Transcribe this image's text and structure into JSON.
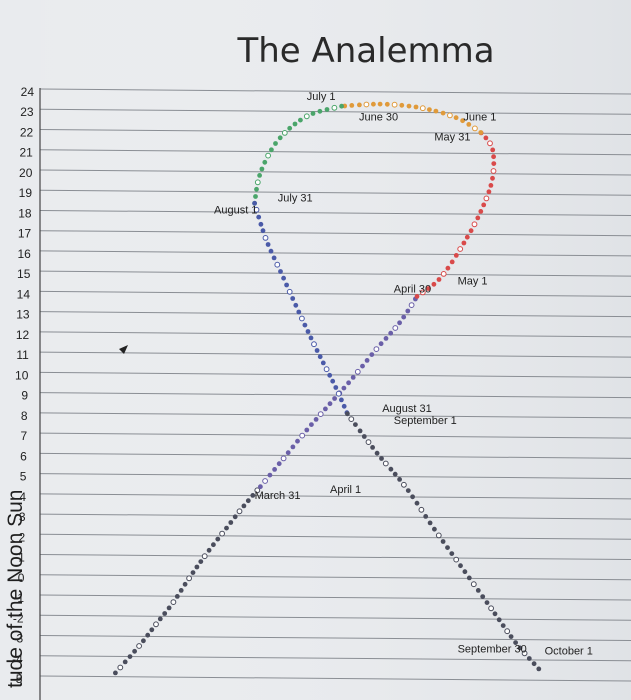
{
  "chart_data": {
    "type": "scatter",
    "title": "The Analemma",
    "ylabel": "tude of the Noon Sun",
    "xlabel": "",
    "ylim": [
      -5,
      24
    ],
    "y_ticks": [
      24,
      23,
      22,
      21,
      20,
      19,
      18,
      17,
      16,
      15,
      14,
      13,
      12,
      11,
      10,
      9,
      8,
      7,
      6,
      5,
      4,
      3,
      2,
      1,
      0,
      -1,
      -2,
      -3,
      -4,
      -5
    ],
    "grid": true,
    "series": [
      {
        "color": "#4a4d5c",
        "segment": "Mar-Apr crossing",
        "points": [
          [
            0.13,
            -4.7
          ],
          [
            0.17,
            -3.4
          ],
          [
            0.2,
            -2.3
          ],
          [
            0.23,
            -1.2
          ],
          [
            0.26,
            0.1
          ],
          [
            0.29,
            1.3
          ],
          [
            0.32,
            2.4
          ],
          [
            0.35,
            3.5
          ],
          [
            0.38,
            4.5
          ]
        ]
      },
      {
        "color": "#6a5fa8",
        "segment": "April",
        "points": [
          [
            0.38,
            4.5
          ],
          [
            0.42,
            5.9
          ],
          [
            0.46,
            7.3
          ],
          [
            0.5,
            8.6
          ],
          [
            0.54,
            9.9
          ],
          [
            0.58,
            11.3
          ],
          [
            0.62,
            12.6
          ],
          [
            0.65,
            13.9
          ]
        ]
      },
      {
        "color": "#d94a4a",
        "segment": "May",
        "points": [
          [
            0.65,
            13.9
          ],
          [
            0.69,
            14.8
          ],
          [
            0.73,
            16.5
          ],
          [
            0.76,
            18.1
          ],
          [
            0.78,
            19.7
          ],
          [
            0.78,
            21.2
          ],
          [
            0.76,
            22.0
          ]
        ]
      },
      {
        "color": "#e09a3a",
        "segment": "June",
        "points": [
          [
            0.76,
            22.0
          ],
          [
            0.72,
            22.7
          ],
          [
            0.66,
            23.2
          ],
          [
            0.59,
            23.4
          ],
          [
            0.52,
            23.3
          ]
        ]
      },
      {
        "color": "#4aa56a",
        "segment": "July",
        "points": [
          [
            0.52,
            23.3
          ],
          [
            0.46,
            22.8
          ],
          [
            0.41,
            21.6
          ],
          [
            0.38,
            20.0
          ],
          [
            0.37,
            18.5
          ]
        ]
      },
      {
        "color": "#4a5aa8",
        "segment": "August",
        "points": [
          [
            0.37,
            18.5
          ],
          [
            0.39,
            16.7
          ],
          [
            0.42,
            14.8
          ],
          [
            0.45,
            12.9
          ],
          [
            0.48,
            11.1
          ],
          [
            0.51,
            9.4
          ],
          [
            0.53,
            8.1
          ]
        ]
      },
      {
        "color": "#4a4d5c",
        "segment": "September",
        "points": [
          [
            0.53,
            8.1
          ],
          [
            0.58,
            6.2
          ],
          [
            0.63,
            4.5
          ],
          [
            0.68,
            2.4
          ],
          [
            0.73,
            0.4
          ],
          [
            0.78,
            -1.6
          ],
          [
            0.82,
            -3.2
          ],
          [
            0.86,
            -4.5
          ]
        ]
      }
    ],
    "annotations": [
      {
        "text": "July 1",
        "x": 0.46,
        "y": 23.6
      },
      {
        "text": "June 30",
        "x": 0.55,
        "y": 22.6
      },
      {
        "text": "June 1",
        "x": 0.73,
        "y": 22.6
      },
      {
        "text": "May 31",
        "x": 0.68,
        "y": 21.6
      },
      {
        "text": "July 31",
        "x": 0.41,
        "y": 18.6
      },
      {
        "text": "August 1",
        "x": 0.3,
        "y": 18.0
      },
      {
        "text": "May 1",
        "x": 0.72,
        "y": 14.5
      },
      {
        "text": "April 30",
        "x": 0.61,
        "y": 14.1
      },
      {
        "text": "August 31",
        "x": 0.59,
        "y": 8.2
      },
      {
        "text": "September 1",
        "x": 0.61,
        "y": 7.6
      },
      {
        "text": "April 1",
        "x": 0.5,
        "y": 4.2
      },
      {
        "text": "March 31",
        "x": 0.37,
        "y": 3.9
      },
      {
        "text": "September 30",
        "x": 0.72,
        "y": -3.7
      },
      {
        "text": "October 1",
        "x": 0.87,
        "y": -3.8
      }
    ]
  }
}
